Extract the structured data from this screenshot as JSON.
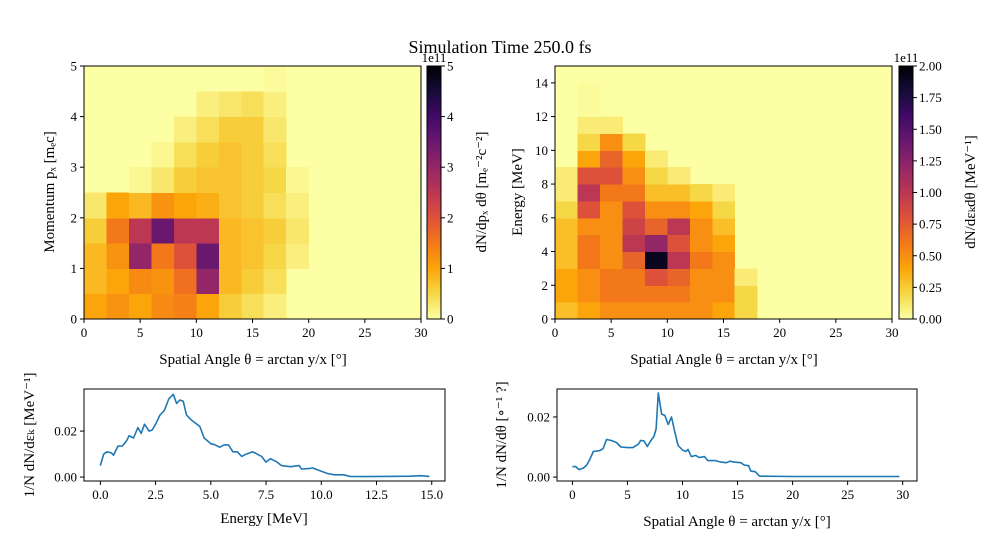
{
  "title": "Simulation Time 250.0 fs",
  "chart_data": [
    {
      "type": "heatmap",
      "xlabel": "Spatial Angle θ = arctan y/x [°]",
      "ylabel": "Momentum pₓ [mₑc]",
      "xlim": [
        0,
        30
      ],
      "ylim": [
        0,
        5
      ],
      "xticks": [
        "0",
        "5",
        "10",
        "15",
        "20",
        "25",
        "30"
      ],
      "yticks": [
        "0",
        "1",
        "2",
        "3",
        "4",
        "5"
      ],
      "x_bins": [
        0,
        2,
        4,
        6,
        8,
        10,
        12,
        14,
        16,
        18,
        20,
        22,
        24,
        26,
        28,
        30
      ],
      "y_bins": [
        0,
        0.5,
        1,
        1.5,
        2,
        2.5,
        3,
        3.5,
        4,
        4.5,
        5
      ],
      "z_rows_from_bottom": [
        [
          1.0,
          1.2,
          1.0,
          1.3,
          1.4,
          1.0,
          0.6,
          0.4,
          0.2
        ],
        [
          0.8,
          1.0,
          1.3,
          1.2,
          1.6,
          3.0,
          0.8,
          0.6,
          0.4
        ],
        [
          0.8,
          1.2,
          3.0,
          1.5,
          2.0,
          3.5,
          0.8,
          0.7,
          0.5,
          0.2
        ],
        [
          0.6,
          1.5,
          2.5,
          3.5,
          2.5,
          2.5,
          0.8,
          0.7,
          0.6,
          0.3
        ],
        [
          0.3,
          1.0,
          0.8,
          1.2,
          1.0,
          0.9,
          0.7,
          0.6,
          0.4,
          0.2
        ],
        [
          0,
          0,
          0.1,
          0.3,
          0.6,
          0.7,
          0.7,
          0.6,
          0.5,
          0.1
        ],
        [
          0,
          0,
          0,
          0.1,
          0.4,
          0.6,
          0.7,
          0.6,
          0.4
        ],
        [
          0,
          0,
          0,
          0,
          0.2,
          0.4,
          0.6,
          0.6,
          0.3
        ],
        [
          0,
          0,
          0,
          0,
          0,
          0.2,
          0.3,
          0.4,
          0.2
        ],
        [
          0,
          0,
          0,
          0,
          0,
          0,
          0,
          0,
          0.05
        ]
      ],
      "colormap": "inferno_r",
      "colorbar": {
        "label": "dN/dpₓ dθ [mₑ⁻²c⁻²]",
        "offset": "1e11",
        "range": [
          0,
          5
        ],
        "ticks": [
          "0",
          "1",
          "2",
          "3",
          "4",
          "5"
        ]
      }
    },
    {
      "type": "heatmap",
      "xlabel": "Spatial Angle θ = arctan y/x [°]",
      "ylabel": "Energy [MeV]",
      "xlim": [
        0,
        30
      ],
      "ylim": [
        0,
        15
      ],
      "xticks": [
        "0",
        "5",
        "10",
        "15",
        "20",
        "25",
        "30"
      ],
      "yticks": [
        "0",
        "2",
        "4",
        "6",
        "8",
        "10",
        "12",
        "14"
      ],
      "x_bins": [
        0,
        2,
        4,
        6,
        8,
        10,
        12,
        14,
        16,
        18,
        20,
        22,
        24,
        26,
        28,
        30
      ],
      "y_bins": [
        0,
        1,
        2,
        3,
        4,
        5,
        6,
        7,
        8,
        9,
        10,
        11,
        12,
        13,
        14,
        15
      ],
      "z_rows_from_bottom": [
        [
          0.3,
          0.4,
          0.5,
          0.5,
          0.5,
          0.5,
          0.5,
          0.4,
          0.2
        ],
        [
          0.4,
          0.5,
          0.6,
          0.6,
          0.6,
          0.6,
          0.5,
          0.5,
          0.2
        ],
        [
          0.4,
          0.5,
          0.6,
          0.6,
          0.8,
          0.7,
          0.5,
          0.5,
          0.1
        ],
        [
          0.3,
          0.6,
          0.5,
          0.7,
          1.9,
          1.0,
          0.6,
          0.5
        ],
        [
          0.3,
          0.6,
          0.5,
          1.0,
          1.2,
          0.8,
          0.5,
          0.4
        ],
        [
          0.3,
          0.5,
          0.5,
          0.9,
          0.7,
          1.0,
          0.5,
          0.3
        ],
        [
          0.2,
          0.8,
          0.5,
          0.8,
          0.5,
          0.5,
          0.4,
          0.2
        ],
        [
          0.1,
          1.0,
          0.6,
          0.6,
          0.3,
          0.3,
          0.2,
          0.1
        ],
        [
          0.1,
          0.8,
          0.8,
          0.5,
          0.2,
          0.1
        ],
        [
          0,
          0.4,
          0.7,
          0.4,
          0.1
        ],
        [
          0,
          0.2,
          0.5,
          0.2
        ],
        [
          0,
          0.1,
          0.1
        ],
        [
          0,
          0.02
        ],
        [
          0,
          0.02
        ],
        [
          0
        ]
      ],
      "colormap": "inferno_r",
      "colorbar": {
        "label": "dN/dεₖdθ [MeV⁻¹]",
        "offset": "1e11",
        "range": [
          0,
          2
        ],
        "ticks": [
          "0.00",
          "0.25",
          "0.50",
          "0.75",
          "1.00",
          "1.25",
          "1.50",
          "1.75",
          "2.00"
        ]
      }
    },
    {
      "type": "line",
      "xlabel": "Energy [MeV]",
      "ylabel": "1/N dN/dεₖ [MeV⁻¹]",
      "xlim": [
        -0.74,
        15.6
      ],
      "ylim": [
        -0.0017,
        0.0383
      ],
      "xticks": [
        "0.0",
        "2.5",
        "5.0",
        "7.5",
        "10.0",
        "12.5",
        "15.0"
      ],
      "yticks": [
        "0.00",
        "0.02"
      ],
      "color": "#1f77b4",
      "x": [
        0,
        0.15,
        0.3,
        0.5,
        0.6,
        0.8,
        1.0,
        1.2,
        1.3,
        1.5,
        1.7,
        1.85,
        2.0,
        2.2,
        2.35,
        2.5,
        2.7,
        2.9,
        3.1,
        3.3,
        3.45,
        3.6,
        3.75,
        3.9,
        4.1,
        4.3,
        4.5,
        4.7,
        5.0,
        5.2,
        5.4,
        5.6,
        5.8,
        6.0,
        6.2,
        6.4,
        6.6,
        6.9,
        7.1,
        7.3,
        7.5,
        7.7,
        8.0,
        8.2,
        8.6,
        9.0,
        9.1,
        9.5,
        9.6,
        10.0,
        10.3,
        10.6,
        11.0,
        11.3,
        12.0,
        13.0,
        14.0,
        14.5,
        14.9
      ],
      "y": [
        0.005,
        0.01,
        0.011,
        0.0105,
        0.0095,
        0.0135,
        0.0135,
        0.016,
        0.018,
        0.017,
        0.0215,
        0.019,
        0.023,
        0.02,
        0.0205,
        0.023,
        0.027,
        0.029,
        0.034,
        0.036,
        0.032,
        0.0335,
        0.033,
        0.027,
        0.025,
        0.0235,
        0.022,
        0.017,
        0.0145,
        0.014,
        0.013,
        0.014,
        0.014,
        0.011,
        0.011,
        0.009,
        0.01,
        0.011,
        0.01,
        0.009,
        0.0065,
        0.008,
        0.0065,
        0.005,
        0.0045,
        0.005,
        0.0035,
        0.0038,
        0.004,
        0.0025,
        0.0015,
        0.001,
        0.001,
        0.0003,
        0.0002,
        0.0003,
        0.0004,
        0.0006,
        0.0003
      ]
    },
    {
      "type": "line",
      "xlabel": "Spatial Angle θ = arctan y/x [°]",
      "ylabel": "1/N dN/dθ [∘⁻¹ ?]",
      "xlim": [
        -1.4,
        31.3
      ],
      "ylim": [
        -0.0013,
        0.0293
      ],
      "xticks": [
        "0",
        "5",
        "10",
        "15",
        "20",
        "25",
        "30"
      ],
      "yticks": [
        "0.00",
        "0.02"
      ],
      "color": "#1f77b4",
      "x": [
        0,
        0.3,
        0.6,
        1.0,
        1.3,
        1.6,
        1.9,
        2.5,
        2.8,
        3.1,
        3.5,
        4.0,
        4.4,
        5.0,
        5.5,
        6.0,
        6.2,
        6.5,
        6.8,
        7.1,
        7.4,
        7.6,
        7.8,
        8.1,
        8.4,
        8.7,
        9.0,
        9.3,
        9.6,
        10.0,
        10.3,
        10.5,
        10.8,
        11.2,
        11.5,
        12.0,
        12.3,
        13.0,
        13.5,
        14.0,
        14.3,
        14.7,
        15.3,
        15.6,
        16.0,
        16.2,
        16.6,
        17.0,
        20.0,
        29.7
      ],
      "y": [
        0.0035,
        0.0035,
        0.0025,
        0.003,
        0.004,
        0.006,
        0.0085,
        0.0088,
        0.0095,
        0.0125,
        0.0122,
        0.0115,
        0.01,
        0.0098,
        0.0098,
        0.011,
        0.0122,
        0.012,
        0.0102,
        0.012,
        0.0135,
        0.016,
        0.028,
        0.021,
        0.0205,
        0.0175,
        0.02,
        0.015,
        0.0105,
        0.009,
        0.0085,
        0.0092,
        0.0068,
        0.0072,
        0.0065,
        0.0068,
        0.0055,
        0.0055,
        0.005,
        0.0048,
        0.0053,
        0.005,
        0.0048,
        0.004,
        0.0038,
        0.002,
        0.0018,
        0.0003,
        0.0002,
        0.0002
      ]
    }
  ]
}
